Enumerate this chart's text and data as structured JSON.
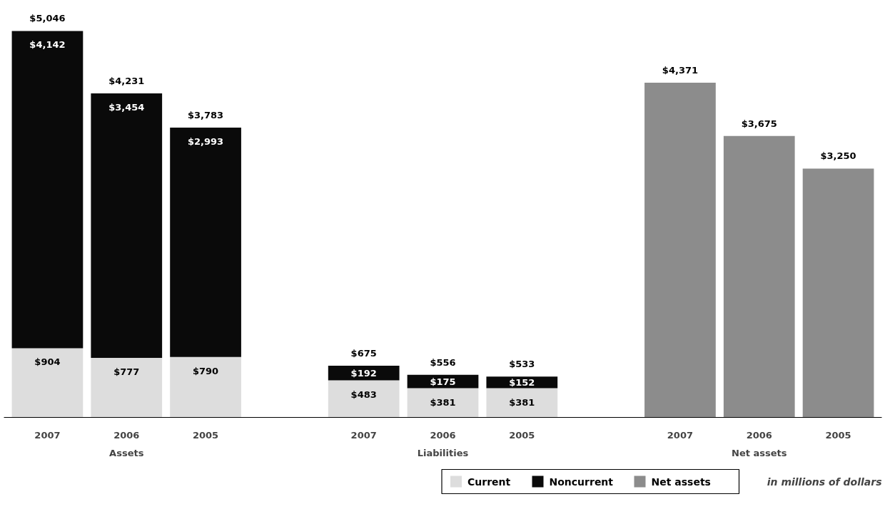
{
  "chart_data": {
    "type": "bar",
    "stacked": true,
    "categories": [
      "2007",
      "2006",
      "2005",
      null,
      "2007",
      "2006",
      "2005",
      null,
      "2007",
      "2006",
      "2005"
    ],
    "series": [
      {
        "name": "Current",
        "color": "#dddddd",
        "values": [
          904,
          777,
          790,
          null,
          483,
          381,
          381,
          null,
          null,
          null,
          null
        ],
        "value_labels": [
          "$904",
          "$777",
          "$790",
          null,
          "$483",
          "$381",
          "$381",
          null,
          null,
          null,
          null
        ]
      },
      {
        "name": "Noncurrent",
        "color": "#0a0a0a",
        "values": [
          4142,
          3454,
          2993,
          null,
          192,
          175,
          152,
          null,
          null,
          null,
          null
        ],
        "value_labels": [
          "$4,142",
          "$3,454",
          "$2,993",
          null,
          "$192",
          "$175",
          "$152",
          null,
          null,
          null,
          null
        ]
      },
      {
        "name": "Net assets",
        "color": "#8c8c8c",
        "values": [
          null,
          null,
          null,
          null,
          null,
          null,
          null,
          null,
          4371,
          3675,
          3250
        ],
        "value_labels": [
          null,
          null,
          null,
          null,
          null,
          null,
          null,
          null,
          "$4,371",
          "$3,675",
          "$3,250"
        ]
      }
    ],
    "totals": [
      "$5,046",
      "$4,231",
      "$3,783",
      null,
      "$675",
      "$556",
      "$533",
      null,
      null,
      null,
      null
    ],
    "tick_labels": "x",
    "legend": "bottom right",
    "annotations": [
      "Assets",
      "Liabilities",
      "Net assets",
      "in millions of dollars"
    ]
  }
}
